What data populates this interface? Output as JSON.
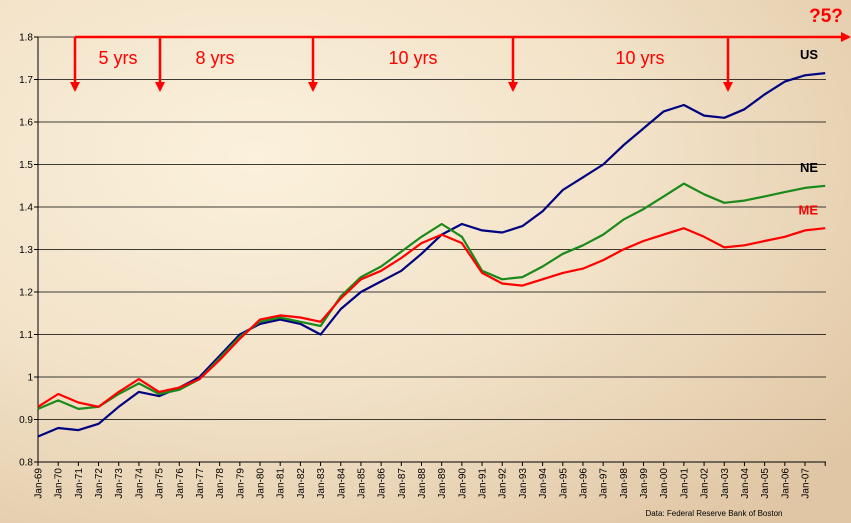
{
  "chart_data": {
    "type": "line",
    "categories": [
      "Jan-69",
      "Jan-70",
      "Jan-71",
      "Jan-72",
      "Jan-73",
      "Jan-74",
      "Jan-75",
      "Jan-76",
      "Jan-77",
      "Jan-78",
      "Jan-79",
      "Jan-80",
      "Jan-81",
      "Jan-82",
      "Jan-83",
      "Jan-84",
      "Jan-85",
      "Jan-86",
      "Jan-87",
      "Jan-88",
      "Jan-89",
      "Jan-90",
      "Jan-91",
      "Jan-92",
      "Jan-93",
      "Jan-94",
      "Jan-95",
      "Jan-96",
      "Jan-97",
      "Jan-98",
      "Jan-99",
      "Jan-00",
      "Jan-01",
      "Jan-02",
      "Jan-03",
      "Jan-04",
      "Jan-05",
      "Jan-06",
      "Jan-07",
      null
    ],
    "series": [
      {
        "name": "US",
        "color": "#000080",
        "label_color": "#000000",
        "values": [
          0.86,
          0.88,
          0.875,
          0.89,
          0.93,
          0.965,
          0.955,
          0.975,
          1.0,
          1.05,
          1.1,
          1.125,
          1.135,
          1.125,
          1.1,
          1.16,
          1.2,
          1.225,
          1.25,
          1.29,
          1.335,
          1.36,
          1.345,
          1.34,
          1.355,
          1.39,
          1.44,
          1.47,
          1.5,
          1.545,
          1.585,
          1.625,
          1.64,
          1.615,
          1.61,
          1.63,
          1.665,
          1.695,
          1.71,
          1.715
        ]
      },
      {
        "name": "NE",
        "color": "#1a8a1a",
        "label_color": "#000000",
        "values": [
          0.925,
          0.945,
          0.925,
          0.93,
          0.96,
          0.985,
          0.96,
          0.97,
          0.995,
          1.045,
          1.095,
          1.13,
          1.14,
          1.13,
          1.12,
          1.19,
          1.235,
          1.26,
          1.295,
          1.33,
          1.36,
          1.33,
          1.25,
          1.23,
          1.235,
          1.26,
          1.29,
          1.31,
          1.335,
          1.37,
          1.395,
          1.425,
          1.455,
          1.43,
          1.41,
          1.415,
          1.425,
          1.435,
          1.445,
          1.45
        ]
      },
      {
        "name": "ME",
        "color": "#ff0000",
        "label_color": "#ff0000",
        "values": [
          0.93,
          0.96,
          0.94,
          0.93,
          0.965,
          0.995,
          0.965,
          0.975,
          0.995,
          1.04,
          1.09,
          1.135,
          1.145,
          1.14,
          1.13,
          1.185,
          1.23,
          1.25,
          1.28,
          1.315,
          1.335,
          1.315,
          1.245,
          1.22,
          1.215,
          1.23,
          1.245,
          1.255,
          1.275,
          1.3,
          1.32,
          1.335,
          1.35,
          1.33,
          1.305,
          1.31,
          1.32,
          1.33,
          1.345,
          1.35
        ]
      }
    ],
    "ylim": [
      0.8,
      1.8
    ],
    "yticks": [
      0.8,
      0.9,
      1,
      1.1,
      1.2,
      1.3,
      1.4,
      1.5,
      1.6,
      1.7,
      1.8
    ],
    "grid": true,
    "annotations": [
      "5 yrs",
      "8 yrs",
      "10 yrs",
      "10 yrs",
      "?5?"
    ],
    "source": "Data:  Federal Reserve Bank of Boston"
  }
}
